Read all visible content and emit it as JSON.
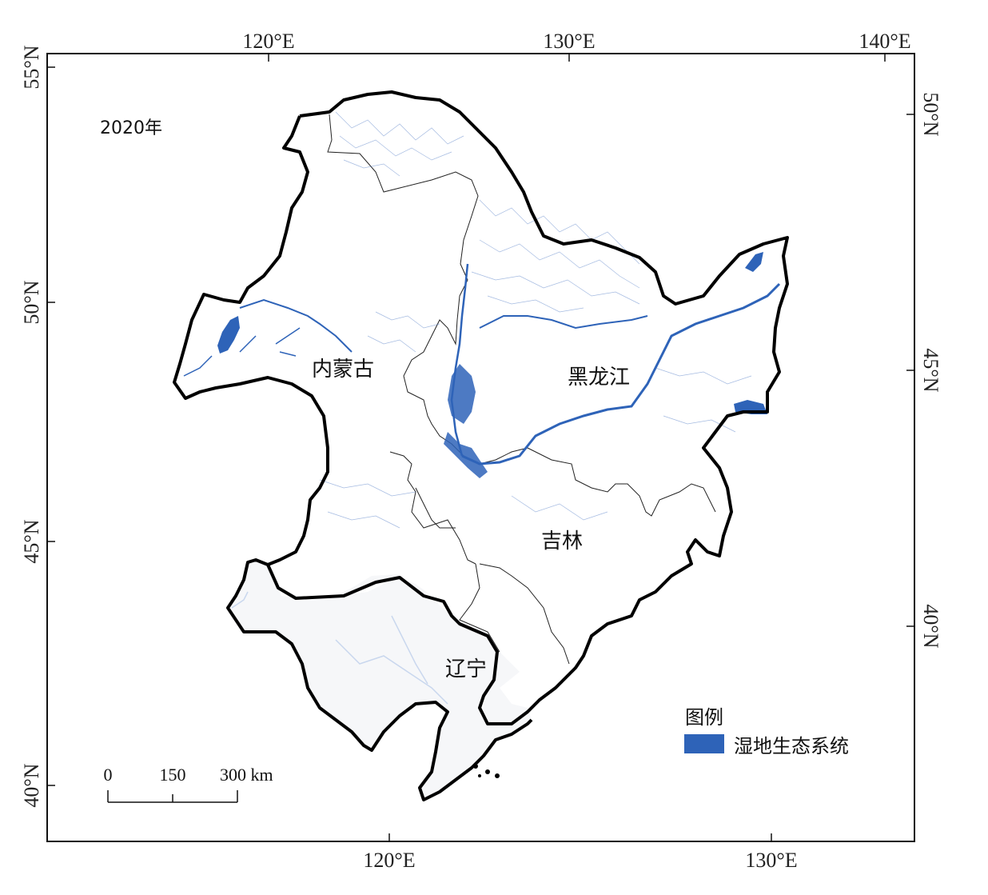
{
  "year": "2020年",
  "axes": {
    "top": [
      "120°E",
      "130°E",
      "140°E"
    ],
    "bottom": [
      "120°E",
      "130°E"
    ],
    "left": [
      "55°N",
      "50°N",
      "45°N",
      "40°N"
    ],
    "right": [
      "50°N",
      "45°N",
      "40°N"
    ]
  },
  "provinces": {
    "nei_menggu": "内蒙古",
    "heilongjiang": "黑龙江",
    "jilin": "吉林",
    "liaoning": "辽宁"
  },
  "legend": {
    "title": "图例",
    "item": "湿地生态系统",
    "color": "#2e63b8"
  },
  "scale_bar": {
    "labels": [
      "0",
      "150",
      "300 km"
    ]
  },
  "colors": {
    "wetland": "#2e63b8",
    "wetland_light": "#c9d7ee",
    "boundary": "#000000",
    "liaoning_fill": "#f6f7f9"
  }
}
